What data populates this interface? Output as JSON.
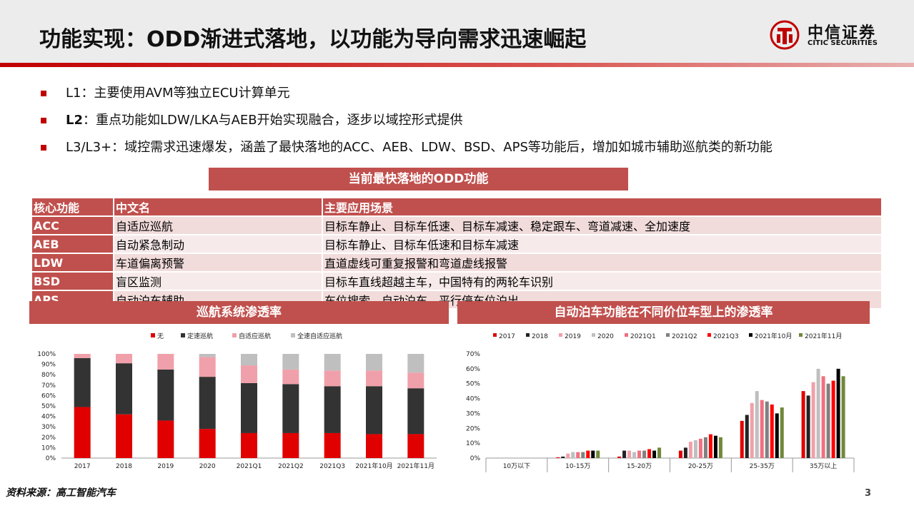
{
  "header": {
    "title": "功能实现：ODD渐进式落地，以功能为导向需求迅速崛起",
    "logo_zh": "中信证券",
    "logo_en": "CITIC SECURITIES"
  },
  "bullets": [
    {
      "lead": "",
      "text": "L1：主要使用AVM等独立ECU计算单元"
    },
    {
      "lead": "L2",
      "text": "：重点功能如LDW/LKA与AEB开始实现融合，逐步以域控形式提供"
    },
    {
      "lead": "",
      "text": "L3/L3+：域控需求迅速爆发，涵盖了最快落地的ACC、AEB、LDW、BSD、APS等功能后，增加如城市辅助巡航类的新功能"
    }
  ],
  "odd_table": {
    "title": "当前最快落地的ODD功能",
    "headers": [
      "核心功能",
      "中文名",
      "主要应用场景"
    ],
    "rows": [
      [
        "ACC",
        "自适应巡航",
        "目标车静止、目标车低速、目标车减速、稳定跟车、弯道减速、全加速度"
      ],
      [
        "AEB",
        "自动紧急制动",
        "目标车静止、目标车低速和目标车减速"
      ],
      [
        "LDW",
        "车道偏离预警",
        "直道虚线可重复报警和弯道虚线报警"
      ],
      [
        "BSD",
        "盲区监测",
        "目标车直线超越主车，中国特有的两轮车识别"
      ],
      [
        "APS",
        "自动泊车辅助",
        "车位搜索、自动泊车、平行停车位泊出"
      ]
    ]
  },
  "chart_data": [
    {
      "type": "bar",
      "stacked": true,
      "title": "巡航系统渗透率",
      "categories": [
        "2017",
        "2018",
        "2019",
        "2020",
        "2021Q1",
        "2021Q2",
        "2021Q3",
        "2021年10月",
        "2021年11月"
      ],
      "series": [
        {
          "name": "无",
          "color": "#e00000",
          "values": [
            49,
            42,
            36,
            28,
            24,
            24,
            24,
            23,
            23
          ]
        },
        {
          "name": "定速巡航",
          "color": "#333333",
          "values": [
            47,
            49,
            49,
            50,
            48,
            47,
            45,
            46,
            44
          ]
        },
        {
          "name": "自适应巡航",
          "color": "#f0a0aa",
          "values": [
            4,
            9,
            15,
            19,
            17,
            14,
            15,
            15,
            15
          ]
        },
        {
          "name": "全速自适应巡航",
          "color": "#bfbfbf",
          "values": [
            0,
            0,
            0,
            3,
            11,
            15,
            16,
            16,
            18
          ]
        }
      ],
      "ylim": [
        0,
        100
      ],
      "yticks": [
        "0%",
        "10%",
        "20%",
        "30%",
        "40%",
        "50%",
        "60%",
        "70%",
        "80%",
        "90%",
        "100%"
      ],
      "legend": "top-right"
    },
    {
      "type": "bar",
      "title": "自动泊车功能在不同价位车型上的渗透率",
      "categories": [
        "10万以下",
        "10-15万",
        "15-20万",
        "20-25万",
        "25-35万",
        "35万以上"
      ],
      "series": [
        {
          "name": "2017",
          "color": "#e00000",
          "values": [
            0,
            0.5,
            1,
            5,
            25,
            45
          ]
        },
        {
          "name": "2018",
          "color": "#222222",
          "values": [
            0,
            1,
            5,
            7,
            29,
            42
          ]
        },
        {
          "name": "2019",
          "color": "#f0a0aa",
          "values": [
            0,
            3,
            5,
            11,
            37,
            51
          ]
        },
        {
          "name": "2020",
          "color": "#bfbfbf",
          "values": [
            0,
            4,
            4,
            12,
            45,
            60
          ]
        },
        {
          "name": "2021Q1",
          "color": "#f07080",
          "values": [
            0,
            4,
            5,
            13,
            39,
            55
          ]
        },
        {
          "name": "2021Q2",
          "color": "#808080",
          "values": [
            0,
            4,
            5,
            14,
            38,
            50
          ]
        },
        {
          "name": "2021Q3",
          "color": "#ff0000",
          "values": [
            0,
            5,
            6,
            16,
            36,
            52
          ]
        },
        {
          "name": "2021年10月",
          "color": "#000000",
          "values": [
            0,
            5,
            5,
            15,
            30,
            60
          ]
        },
        {
          "name": "2021年11月",
          "color": "#70883a",
          "values": [
            0,
            5,
            7,
            14,
            34,
            55
          ]
        }
      ],
      "ylim": [
        0,
        70
      ],
      "yticks": [
        "0%",
        "10%",
        "20%",
        "30%",
        "40%",
        "50%",
        "60%",
        "70%"
      ],
      "legend": "top"
    }
  ],
  "footer": {
    "source": "资料来源：高工智能汽车",
    "page": "3"
  },
  "colors": {
    "accent": "#c00000",
    "bar": "#c0504d"
  }
}
